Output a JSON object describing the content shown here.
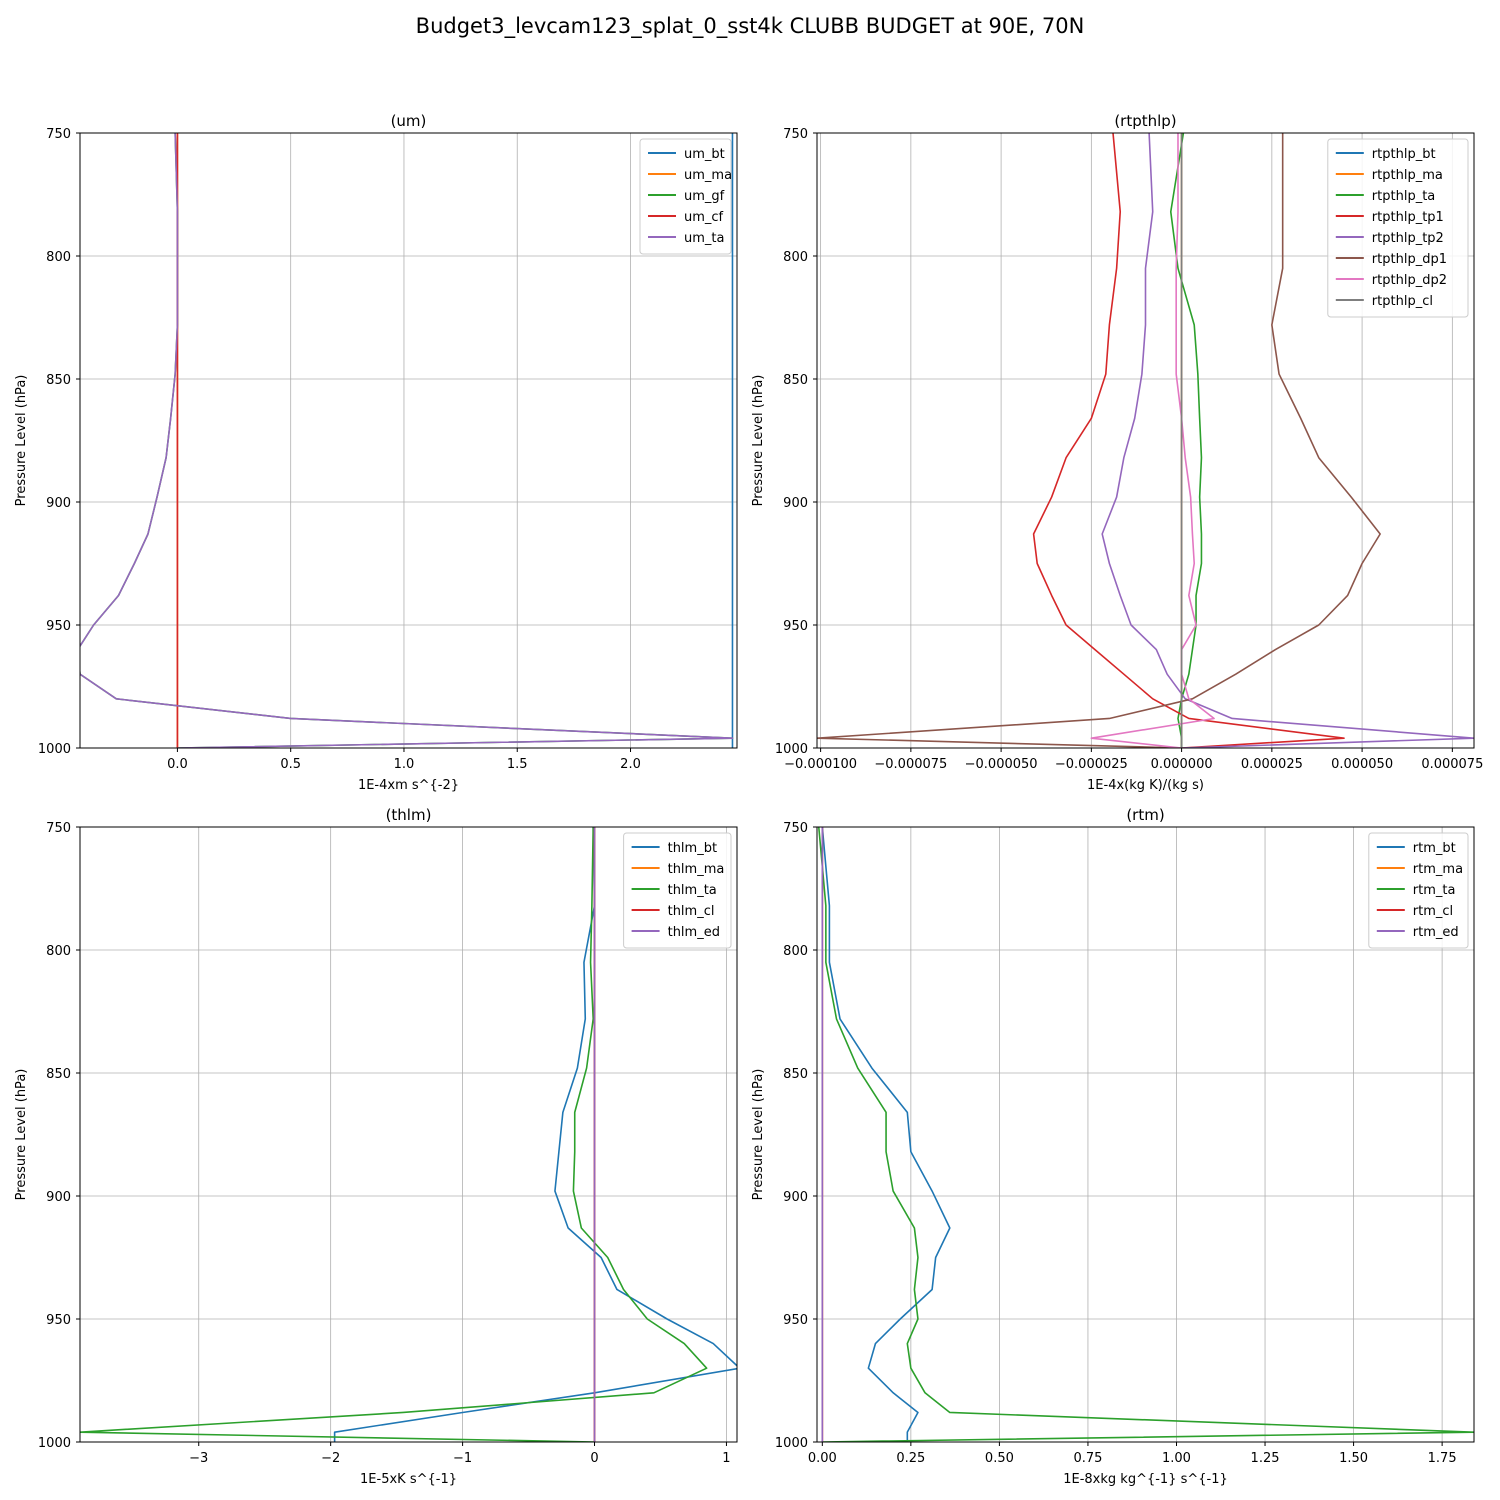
{
  "figure_title": "Budget3_levcam123_splat_0_sst4k CLUBB BUDGET at 90E, 70N",
  "colors": {
    "blue": "#1f77b4",
    "orange": "#ff7f0e",
    "green": "#2ca02c",
    "red": "#d62728",
    "purple": "#9467bd",
    "brown": "#8c564b",
    "pink": "#e377c2",
    "gray": "#7f7f7f",
    "grid": "#b0b0b0"
  },
  "chart_data": [
    {
      "type": "line",
      "title": "(um)",
      "xlabel": "1E-4xm s^{-2}",
      "ylabel": "Pressure Level (hPa)",
      "xlim": [
        -0.43,
        2.47
      ],
      "ylim": [
        1000,
        750
      ],
      "xticks": [
        0.0,
        0.5,
        1.0,
        1.5,
        2.0
      ],
      "xtick_labels": [
        "0.0",
        "0.5",
        "1.0",
        "1.5",
        "2.0"
      ],
      "yticks": [
        750,
        800,
        850,
        900,
        950,
        1000
      ],
      "ytick_labels": [
        "750",
        "800",
        "850",
        "900",
        "950",
        "1000"
      ],
      "grid": true,
      "legend": "top-right",
      "y": [
        1000,
        996,
        988,
        980,
        970,
        960,
        950,
        938,
        925,
        913,
        898,
        882,
        866,
        848,
        828,
        805,
        782,
        750
      ],
      "series": [
        {
          "name": "um_bt",
          "color": "blue",
          "values": [
            2.45,
            2.45,
            2.45,
            2.45,
            2.45,
            2.45,
            2.45,
            2.45,
            2.45,
            2.45,
            2.45,
            2.45,
            2.45,
            2.45,
            2.45,
            2.45,
            2.45,
            2.45
          ]
        },
        {
          "name": "um_ma",
          "color": "orange",
          "values": [
            0,
            0,
            0,
            0,
            0,
            0,
            0,
            0,
            0,
            0,
            0,
            0,
            0,
            0,
            0,
            0,
            0,
            0
          ]
        },
        {
          "name": "um_gf",
          "color": "green",
          "values": [
            0,
            2.45,
            0.5,
            -0.27,
            -0.43,
            -0.44,
            -0.37,
            -0.26,
            -0.19,
            -0.13,
            -0.09,
            -0.05,
            -0.03,
            -0.01,
            0.0,
            0.0,
            0.0,
            -0.01
          ]
        },
        {
          "name": "um_cf",
          "color": "red",
          "values": [
            0,
            0,
            0,
            0,
            0,
            0,
            0,
            0,
            0,
            0,
            0,
            0,
            0,
            0,
            0,
            0,
            0,
            0
          ]
        },
        {
          "name": "um_ta",
          "color": "purple",
          "values": [
            0,
            2.45,
            0.5,
            -0.27,
            -0.43,
            -0.44,
            -0.37,
            -0.26,
            -0.19,
            -0.13,
            -0.09,
            -0.05,
            -0.03,
            -0.01,
            0.0,
            0.0,
            0.0,
            -0.01
          ]
        }
      ]
    },
    {
      "type": "line",
      "title": "(rtpthlp)",
      "xlabel": "1E-4x(kg K)/(kg s)",
      "ylabel": "Pressure Level (hPa)",
      "xlim": [
        -0.000101,
        8.1e-05
      ],
      "ylim": [
        1000,
        750
      ],
      "xticks": [
        -0.0001,
        -7.5e-05,
        -5e-05,
        -2.5e-05,
        0.0,
        2.5e-05,
        5e-05,
        7.5e-05
      ],
      "xtick_labels": [
        "−0.000100",
        "−0.000075",
        "−0.000050",
        "−0.000025",
        "0.000000",
        "0.000025",
        "0.000050",
        "0.000075"
      ],
      "yticks": [
        750,
        800,
        850,
        900,
        950,
        1000
      ],
      "ytick_labels": [
        "750",
        "800",
        "850",
        "900",
        "950",
        "1000"
      ],
      "grid": true,
      "legend": "top-right",
      "y": [
        1000,
        996,
        988,
        980,
        970,
        960,
        950,
        938,
        925,
        913,
        898,
        882,
        866,
        848,
        828,
        805,
        782,
        750
      ],
      "series": [
        {
          "name": "rtpthlp_bt",
          "color": "blue",
          "values": [
            0,
            0,
            0,
            0,
            0,
            0,
            0,
            0,
            0,
            0,
            0,
            0,
            0,
            0,
            0,
            0,
            0,
            0
          ]
        },
        {
          "name": "rtpthlp_ma",
          "color": "orange",
          "values": [
            0,
            0,
            0,
            0,
            0,
            0,
            0,
            0,
            0,
            0,
            0,
            0,
            0,
            0,
            0,
            0,
            0,
            0
          ]
        },
        {
          "name": "rtpthlp_ta",
          "color": "green",
          "values": [
            0,
            0,
            -1e-06,
            0.0,
            2e-06,
            3e-06,
            4e-06,
            4e-06,
            5.5e-06,
            5.5e-06,
            5e-06,
            5.5e-06,
            5e-06,
            4.5e-06,
            3.5e-06,
            -1e-06,
            -3e-06,
            5e-07
          ]
        },
        {
          "name": "rtpthlp_tp1",
          "color": "red",
          "values": [
            0,
            4.5e-05,
            2e-06,
            -8e-06,
            -1.6e-05,
            -2.4e-05,
            -3.2e-05,
            -3.6e-05,
            -4e-05,
            -4.1e-05,
            -3.6e-05,
            -3.2e-05,
            -2.5e-05,
            -2.1e-05,
            -2e-05,
            -1.8e-05,
            -1.7e-05,
            -1.9e-05
          ]
        },
        {
          "name": "rtpthlp_tp2",
          "color": "purple",
          "values": [
            0,
            8.1e-05,
            1.4e-05,
            1e-06,
            -4e-06,
            -7e-06,
            -1.4e-05,
            -1.7e-05,
            -2e-05,
            -2.2e-05,
            -1.8e-05,
            -1.6e-05,
            -1.3e-05,
            -1.1e-05,
            -1e-05,
            -1e-05,
            -8e-06,
            -9e-06
          ]
        },
        {
          "name": "rtpthlp_dp1",
          "color": "brown",
          "values": [
            0,
            -0.000101,
            -2e-05,
            3e-06,
            1.5e-05,
            2.6e-05,
            3.8e-05,
            4.6e-05,
            5e-05,
            5.5e-05,
            4.7e-05,
            3.8e-05,
            3.3e-05,
            2.7e-05,
            2.5e-05,
            2.8e-05,
            2.8e-05,
            2.8e-05
          ]
        },
        {
          "name": "rtpthlp_dp2",
          "color": "pink",
          "values": [
            0,
            -2.5e-05,
            9e-06,
            2e-06,
            0.0,
            0.0,
            4e-06,
            2e-06,
            3.5e-06,
            3e-06,
            2.5e-06,
            1e-06,
            0.0,
            -1.5e-06,
            -1.5e-06,
            -1.5e-06,
            -1e-06,
            -1e-06
          ]
        },
        {
          "name": "rtpthlp_cl",
          "color": "gray",
          "values": [
            0,
            0,
            0,
            0,
            0,
            0,
            0,
            0,
            0,
            0,
            0,
            0,
            0,
            0,
            0,
            0,
            0,
            0
          ]
        }
      ]
    },
    {
      "type": "line",
      "title": "(thlm)",
      "xlabel": "1E-5xK s^{-1}",
      "ylabel": "Pressure Level (hPa)",
      "xlim": [
        -3.9,
        1.08
      ],
      "ylim": [
        1000,
        750
      ],
      "xticks": [
        -3,
        -2,
        -1,
        0,
        1
      ],
      "xtick_labels": [
        "−3",
        "−2",
        "−1",
        "0",
        "1"
      ],
      "yticks": [
        750,
        800,
        850,
        900,
        950,
        1000
      ],
      "ytick_labels": [
        "750",
        "800",
        "850",
        "900",
        "950",
        "1000"
      ],
      "grid": true,
      "legend": "top-right",
      "y": [
        1000,
        996,
        988,
        980,
        970,
        960,
        950,
        938,
        925,
        913,
        898,
        882,
        866,
        848,
        828,
        805,
        782,
        750
      ],
      "series": [
        {
          "name": "thlm_bt",
          "color": "blue",
          "values": [
            -1.97,
            -1.97,
            -1.0,
            -0.0,
            1.1,
            0.9,
            0.55,
            0.17,
            0.05,
            -0.2,
            -0.3,
            -0.27,
            -0.24,
            -0.13,
            -0.07,
            -0.08,
            0.0,
            -0.01
          ]
        },
        {
          "name": "thlm_ma",
          "color": "orange",
          "values": [
            0,
            0,
            0,
            0,
            0,
            0,
            0,
            0,
            0,
            0,
            0,
            0,
            0,
            0,
            0,
            0,
            0,
            0
          ]
        },
        {
          "name": "thlm_ta",
          "color": "green",
          "values": [
            0,
            -3.9,
            -1.45,
            0.45,
            0.85,
            0.68,
            0.4,
            0.22,
            0.1,
            -0.1,
            -0.16,
            -0.15,
            -0.15,
            -0.06,
            -0.01,
            -0.03,
            -0.02,
            -0.01
          ]
        },
        {
          "name": "thlm_cl",
          "color": "red",
          "values": [
            0,
            0,
            0,
            0,
            0,
            0,
            0,
            0,
            0,
            0,
            0,
            0,
            0,
            0,
            0,
            0,
            0,
            0
          ]
        },
        {
          "name": "thlm_ed",
          "color": "purple",
          "values": [
            0,
            0,
            0,
            0,
            0,
            0,
            0,
            0,
            0,
            0,
            0,
            0,
            0,
            0,
            0,
            0,
            0,
            0
          ]
        }
      ]
    },
    {
      "type": "line",
      "title": "(rtm)",
      "xlabel": "1E-8xkg kg^{-1} s^{-1}",
      "ylabel": "Pressure Level (hPa)",
      "xlim": [
        -0.015,
        1.84
      ],
      "ylim": [
        1000,
        750
      ],
      "xticks": [
        0.0,
        0.25,
        0.5,
        0.75,
        1.0,
        1.25,
        1.5,
        1.75
      ],
      "xtick_labels": [
        "0.00",
        "0.25",
        "0.50",
        "0.75",
        "1.00",
        "1.25",
        "1.50",
        "1.75"
      ],
      "yticks": [
        750,
        800,
        850,
        900,
        950,
        1000
      ],
      "ytick_labels": [
        "750",
        "800",
        "850",
        "900",
        "950",
        "1000"
      ],
      "grid": true,
      "legend": "top-right",
      "y": [
        1000,
        996,
        988,
        980,
        970,
        960,
        950,
        938,
        925,
        913,
        898,
        882,
        866,
        848,
        828,
        805,
        782,
        750
      ],
      "series": [
        {
          "name": "rtm_bt",
          "color": "blue",
          "values": [
            0.24,
            0.24,
            0.27,
            0.2,
            0.13,
            0.15,
            0.22,
            0.31,
            0.32,
            0.36,
            0.31,
            0.25,
            0.24,
            0.14,
            0.05,
            0.02,
            0.02,
            0.0
          ]
        },
        {
          "name": "rtm_ma",
          "color": "orange",
          "values": [
            0,
            0,
            0,
            0,
            0,
            0,
            0,
            0,
            0,
            0,
            0,
            0,
            0,
            0,
            0,
            0,
            0,
            0
          ]
        },
        {
          "name": "rtm_ta",
          "color": "green",
          "values": [
            0,
            1.84,
            0.36,
            0.29,
            0.25,
            0.24,
            0.27,
            0.26,
            0.27,
            0.26,
            0.2,
            0.18,
            0.18,
            0.1,
            0.04,
            0.01,
            0.01,
            -0.01
          ]
        },
        {
          "name": "rtm_cl",
          "color": "red",
          "values": [
            0,
            0,
            0,
            0,
            0,
            0,
            0,
            0,
            0,
            0,
            0,
            0,
            0,
            0,
            0,
            0,
            0,
            0
          ]
        },
        {
          "name": "rtm_ed",
          "color": "purple",
          "values": [
            0,
            0,
            0,
            0,
            0,
            0,
            0,
            0,
            0,
            0,
            0,
            0,
            0,
            0,
            0,
            0,
            0,
            0
          ]
        }
      ]
    }
  ]
}
